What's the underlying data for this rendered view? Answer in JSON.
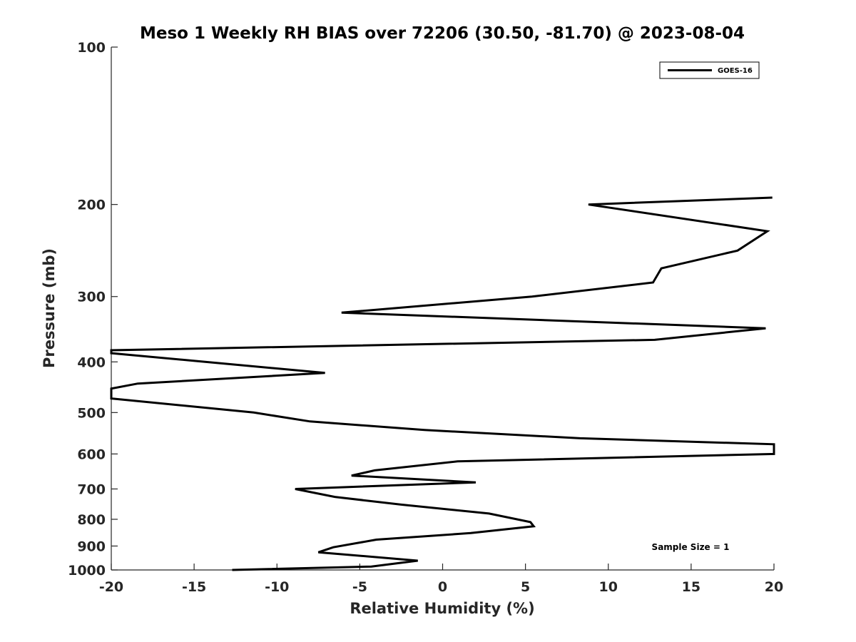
{
  "chart_data": {
    "type": "line",
    "title": "Meso 1 Weekly RH BIAS over 72206 (30.50, -81.70) @ 2023-08-04",
    "xlabel": "Relative Humidity (%)",
    "ylabel": "Pressure (mb)",
    "xlim": [
      -20,
      20
    ],
    "ylim": [
      1000,
      100
    ],
    "yscale": "log",
    "y_reversed": true,
    "grid": false,
    "legend_position": "top-right",
    "line_color": "#000000",
    "xticks": [
      -20,
      -15,
      -10,
      -5,
      0,
      5,
      10,
      15,
      20
    ],
    "xtick_labels": [
      "-20",
      "-15",
      "-10",
      "-5",
      "0",
      "5",
      "10",
      "15",
      "20"
    ],
    "yticks": [
      100,
      200,
      300,
      400,
      500,
      600,
      700,
      800,
      900,
      1000
    ],
    "ytick_labels": [
      "100",
      "200",
      "300",
      "400",
      "500",
      "600",
      "700",
      "800",
      "900",
      "1000"
    ],
    "series": [
      {
        "name": "GOES-16",
        "points": [
          [
            -12.7,
            1000
          ],
          [
            -4.3,
            985
          ],
          [
            -1.5,
            960
          ],
          [
            -7.5,
            925
          ],
          [
            -6.6,
            905
          ],
          [
            -4.0,
            875
          ],
          [
            1.7,
            850
          ],
          [
            5.5,
            825
          ],
          [
            5.3,
            810
          ],
          [
            2.8,
            780
          ],
          [
            -2.5,
            750
          ],
          [
            -6.5,
            725
          ],
          [
            -8.9,
            700
          ],
          [
            2.0,
            680
          ],
          [
            -5.5,
            660
          ],
          [
            -4.1,
            645
          ],
          [
            0.9,
            620
          ],
          [
            20,
            600
          ],
          [
            20,
            575
          ],
          [
            8.3,
            560
          ],
          [
            -1.1,
            540
          ],
          [
            -8.0,
            520
          ],
          [
            -11.4,
            500
          ],
          [
            -20,
            470
          ],
          [
            -20,
            450
          ],
          [
            -18.4,
            440
          ],
          [
            -7.1,
            420
          ],
          [
            -20,
            385
          ],
          [
            -20,
            380
          ],
          [
            12.8,
            363
          ],
          [
            19.5,
            345
          ],
          [
            -6.1,
            322
          ],
          [
            5.4,
            300
          ],
          [
            12.7,
            282
          ],
          [
            13.2,
            265
          ],
          [
            17.8,
            245
          ],
          [
            19.6,
            225
          ],
          [
            8.8,
            200
          ],
          [
            19.9,
            194
          ]
        ]
      }
    ],
    "annotation": "Sample Size = 1"
  }
}
